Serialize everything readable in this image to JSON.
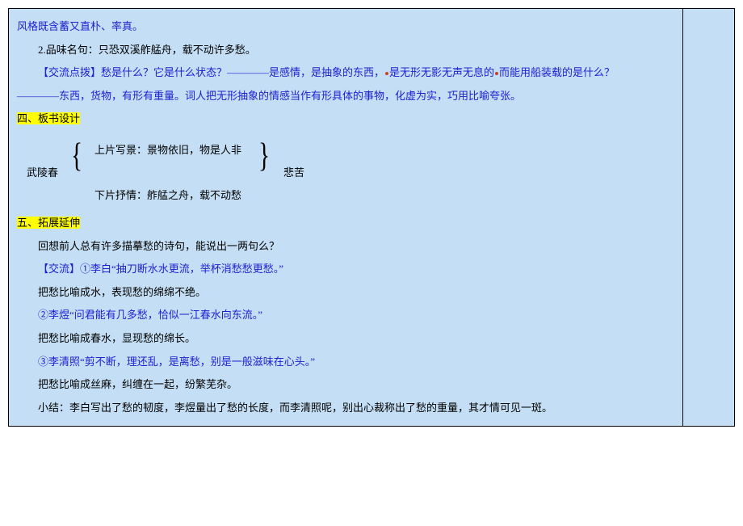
{
  "colors": {
    "page_bg": "#c4dff5",
    "border": "#000000",
    "text_blue": "#2020d0",
    "text_black": "#000000",
    "highlight_bg": "#ffff00",
    "red_dot": "#d04020"
  },
  "typography": {
    "font_family": "SimSun",
    "base_fontsize_pt": 10,
    "line_height": 2.2
  },
  "section1": {
    "line1": "风格既含蓄又直朴、率真。",
    "line2": "2.品味名句：只恐双溪舴艋舟，载不动许多愁。",
    "jiaoliu_label": "【交流点拨】",
    "jiaoliu_a": "愁是什么？它是什么状态？————是感情，是抽象的东西，",
    "jiaoliu_b": "是无形无影无声无息的",
    "jiaoliu_c": "而能用船装载的是什么？",
    "line4": "————东西，货物，有形有重量。词人把无形抽象的情感当作有形具体的事物，化虚为实，巧用比喻夸张。"
  },
  "section4_heading": "四、板书设计",
  "diagram": {
    "left_label": "武陵春",
    "top_line": "上片写景：景物依旧，物是人非",
    "bottom_line": "下片抒情：舴艋之舟，载不动愁",
    "right_label": "悲苦"
  },
  "section5_heading": "五、拓展延伸",
  "section5": {
    "p1": "回想前人总有许多描摹愁的诗句，能说出一两句么？",
    "jl_label": "【交流】",
    "jl1": "①李白“抽刀断水水更流，举杯消愁愁更愁。”",
    "p2": "把愁比喻成水，表现愁的绵绵不绝。",
    "jl2": "②李煜“问君能有几多愁，恰似一江春水向东流。”",
    "p3": "把愁比喻成春水，显现愁的绵长。",
    "jl3": "③李清照“剪不断，理还乱，是离愁，别是一般滋味在心头。”",
    "p4": "把愁比喻成丝麻，纠缠在一起，纷繁芜杂。",
    "summary": "小结：李白写出了愁的韧度，李煜量出了愁的长度，而李清照呢，别出心裁称出了愁的重量，其才情可见一斑。"
  }
}
